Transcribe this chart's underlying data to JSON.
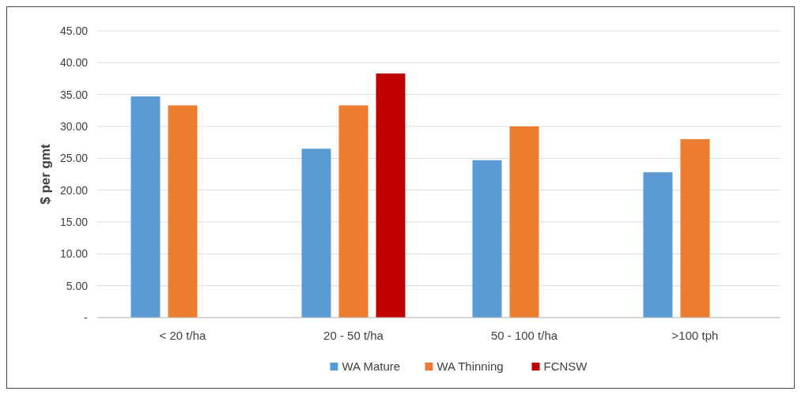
{
  "chart_data": {
    "type": "bar",
    "ylabel": "$ per gmt",
    "categories": [
      "< 20 t/ha",
      "20 - 50 t/ha",
      "50 - 100 t/ha",
      ">100 tph"
    ],
    "series": [
      {
        "name": "WA Mature",
        "color": "#5b9bd5",
        "values": [
          34.7,
          26.5,
          24.7,
          22.8
        ]
      },
      {
        "name": "WA Thinning",
        "color": "#ed7d31",
        "values": [
          33.3,
          33.3,
          30.0,
          28.0
        ]
      },
      {
        "name": "FCNSW",
        "color": "#c00000",
        "values": [
          null,
          38.3,
          null,
          null
        ]
      }
    ],
    "ylim": [
      0,
      45
    ],
    "yticks": [
      {
        "value": 0,
        "label": "-"
      },
      {
        "value": 5,
        "label": "5.00"
      },
      {
        "value": 10,
        "label": "10.00"
      },
      {
        "value": 15,
        "label": "15.00"
      },
      {
        "value": 20,
        "label": "20.00"
      },
      {
        "value": 25,
        "label": "25.00"
      },
      {
        "value": 30,
        "label": "30.00"
      },
      {
        "value": 35,
        "label": "35.00"
      },
      {
        "value": 40,
        "label": "40.00"
      },
      {
        "value": 45,
        "label": "45.00"
      }
    ],
    "grid": "y",
    "legend": "bottom"
  }
}
